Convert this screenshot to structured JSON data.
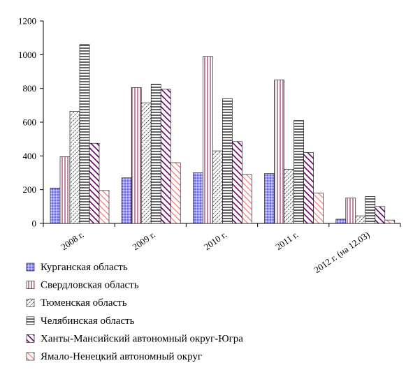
{
  "chart_data": {
    "type": "bar",
    "categories": [
      "2008 г.",
      "2009 г.",
      "2010 г.",
      "2011 г.",
      "2012 г. (на 12.03)"
    ],
    "series": [
      {
        "name": "Курганская область",
        "values": [
          210,
          270,
          300,
          295,
          25
        ],
        "pattern": "dots",
        "color": "#9999ff"
      },
      {
        "name": "Свердловская область",
        "values": [
          395,
          805,
          990,
          850,
          150
        ],
        "pattern": "vlines",
        "color": "#993366"
      },
      {
        "name": "Тюменская область",
        "values": [
          665,
          715,
          430,
          320,
          45
        ],
        "pattern": "diag-fine",
        "color": "#000000"
      },
      {
        "name": "Челябинская область",
        "values": [
          1060,
          825,
          740,
          610,
          160
        ],
        "pattern": "hlines",
        "color": "#000000"
      },
      {
        "name": "Ханты-Мансийский автономный округ-Югра",
        "values": [
          475,
          795,
          485,
          420,
          100
        ],
        "pattern": "diag-bold",
        "color": "#660066"
      },
      {
        "name": "Ямало-Ненецкий автономный округ",
        "values": [
          195,
          360,
          290,
          180,
          20
        ],
        "pattern": "diag-red",
        "color": "#ff6666"
      }
    ],
    "ylim": [
      0,
      1200
    ],
    "yticks": [
      "0",
      "200",
      "400",
      "600",
      "800",
      "1000",
      "1200"
    ],
    "grid": false,
    "legend_position": "bottom"
  }
}
